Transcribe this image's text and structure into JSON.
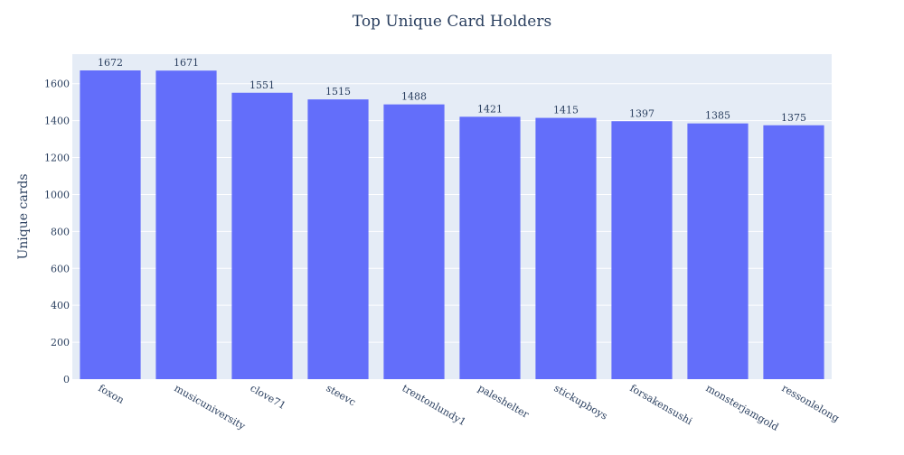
{
  "chart_data": {
    "type": "bar",
    "title": "Top Unique Card Holders",
    "xlabel": "",
    "ylabel": "Unique cards",
    "categories": [
      "foxon",
      "musicuniversity",
      "clove71",
      "steevc",
      "trentonlundy1",
      "paleshelter",
      "stickupboys",
      "forsakensushi",
      "monsterjamgold",
      "ressonlelong"
    ],
    "values": [
      1672,
      1671,
      1551,
      1515,
      1488,
      1421,
      1415,
      1397,
      1385,
      1375
    ],
    "ylim": [
      0,
      1760
    ],
    "yticks": [
      0,
      200,
      400,
      600,
      800,
      1000,
      1200,
      1400,
      1600
    ],
    "grid": true,
    "legend": "none",
    "colors": {
      "bar": "#636efa",
      "plot_background": "#e5ecf6",
      "text": "#2a3f5f",
      "grid": "#ffffff"
    }
  }
}
